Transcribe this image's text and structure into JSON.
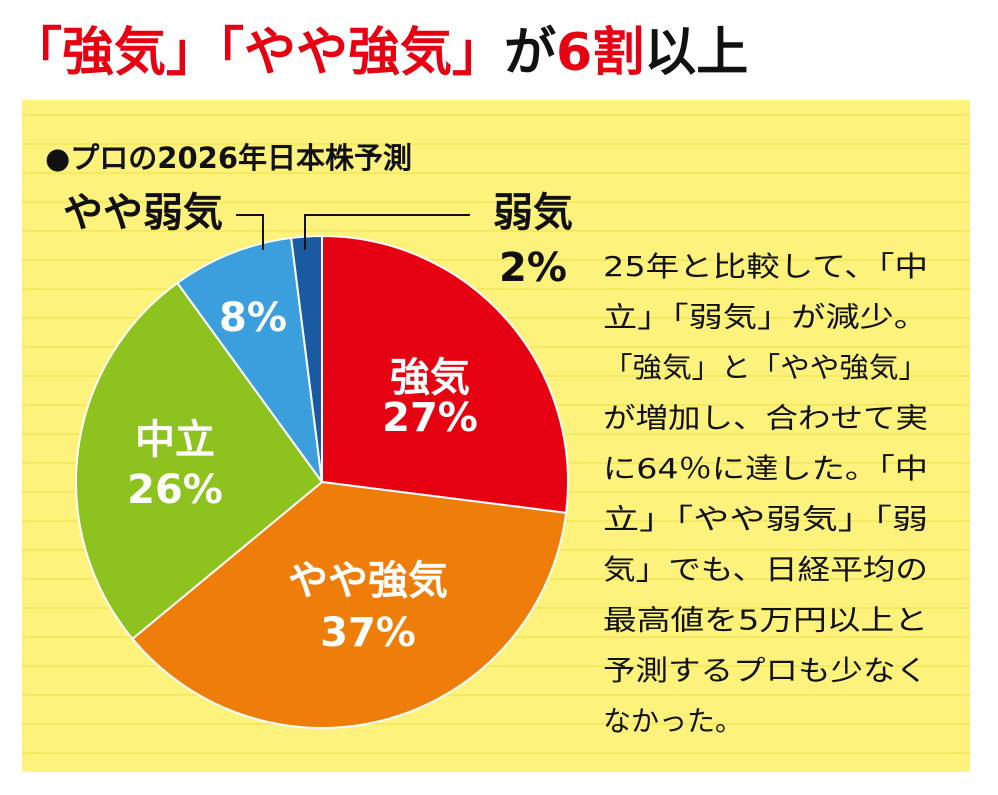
{
  "chart_data": {
    "type": "pie",
    "title": [
      {
        "text": "「強気」「やや強気」",
        "color": "#e60012"
      },
      {
        "text": "が",
        "color": "#111111"
      },
      {
        "text": "6割",
        "color": "#e60012"
      },
      {
        "text": "以上",
        "color": "#111111"
      }
    ],
    "subtitle": "●プロの2026年日本株予測",
    "categories": [
      "強気",
      "やや強気",
      "中立",
      "やや弱気",
      "弱気"
    ],
    "values": [
      27,
      37,
      26,
      8,
      2
    ],
    "value_labels": [
      "27%",
      "37%",
      "26%",
      "8%",
      "2%"
    ],
    "colors": [
      "#e50012",
      "#ef7d0a",
      "#8dc21f",
      "#3a9fdc",
      "#1a5aa0"
    ],
    "annotation": [
      "25年と比較して、「中",
      "立」「弱気」が減少。",
      "「強気」と「やや強気」",
      "が増加し、合わせて実",
      "に64％に達した。「中",
      "立」「やや弱気」「弱",
      "気」でも、日経平均の",
      "最高値を5万円以上と",
      "予測するプロも少なく",
      "なかった。"
    ]
  }
}
